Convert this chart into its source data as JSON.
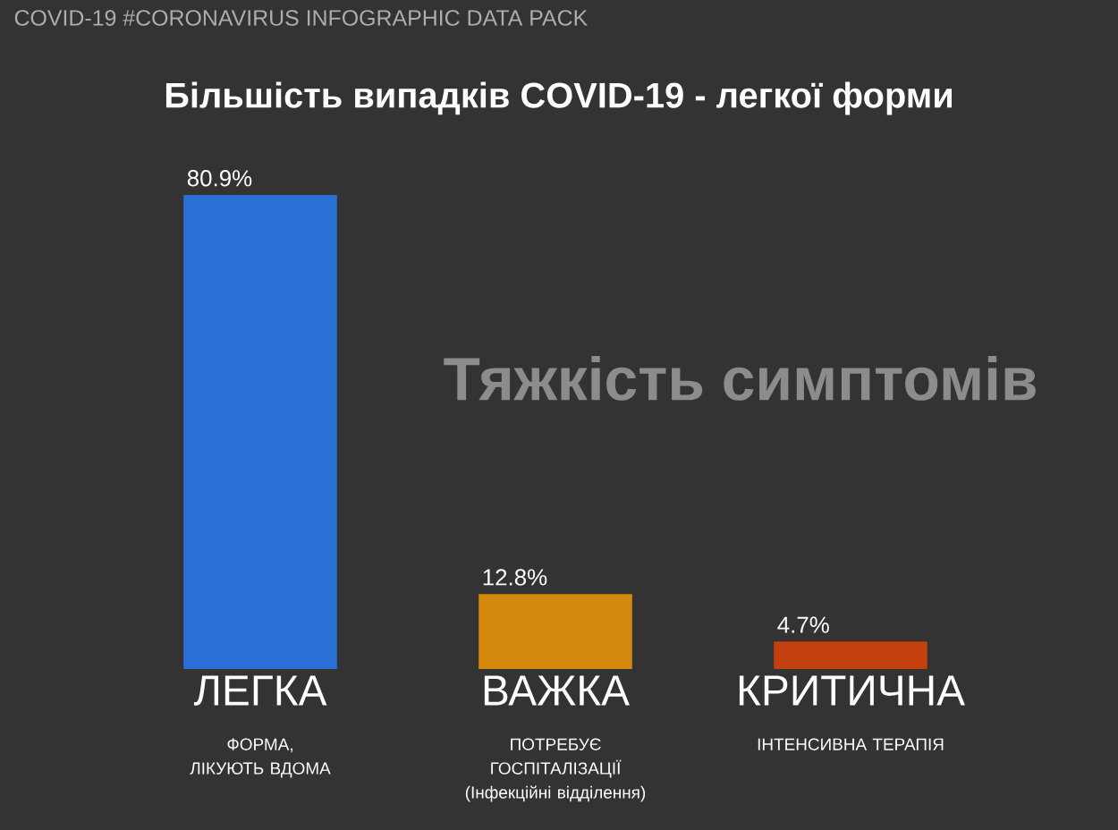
{
  "chart_data": {
    "type": "bar",
    "title": "Більшість випадків COVID-19 - легкої форми",
    "categories": [
      "ЛЕГКА",
      "ВАЖКА",
      "КРИТИЧНА"
    ],
    "values": [
      80.9,
      12.8,
      4.7
    ],
    "colors": [
      "#2a6fd6",
      "#d4880c",
      "#c4400e"
    ],
    "value_labels": [
      "80.9%",
      "12.8%",
      "4.7%"
    ],
    "annotations": [
      "COVID-19 #CORONAVIRUS INFOGRAPHIC DATA PACK",
      "Тяжкість симптомів",
      "ФОРМА, ЛІКУЮТЬ ВДОМА",
      "ПОТРЕБУЄ ГОСПІТАЛІЗАЦІЇ (Інфекційні відділення)",
      "ІНТЕНСИВНА ТЕРАПІЯ"
    ]
  }
}
